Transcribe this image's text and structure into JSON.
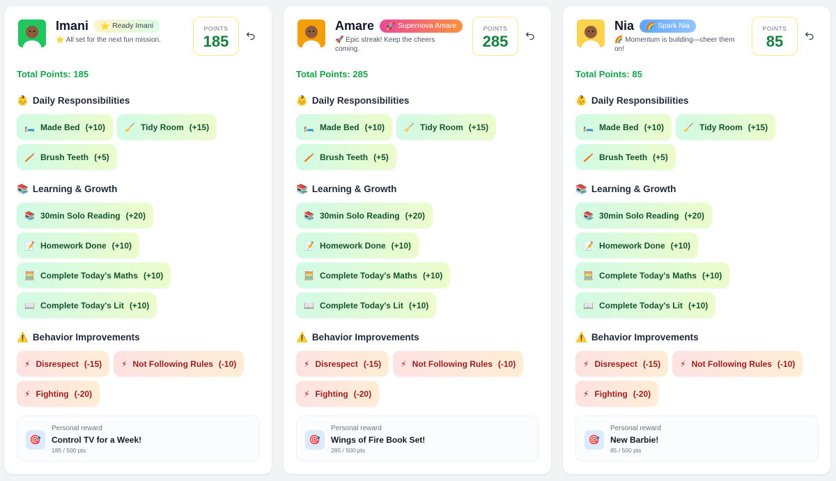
{
  "kids": [
    {
      "name": "Imani",
      "badge_icon": "⭐",
      "badge": "Ready Imani",
      "badge_colors": [
        "#fef3c7",
        "#dcfce7"
      ],
      "badge_text_color": "#374151",
      "avatar_color": "#22c55e",
      "message_icon": "⭐",
      "message": "All set for the next fun mission.",
      "points_label": "POINTS",
      "points": 185,
      "total": "Total Points: 185",
      "sections": [
        {
          "icon": "👶",
          "title": "Daily Responsibilities",
          "button_colors": [
            "#d1fae5",
            "#ecfccb"
          ],
          "text_color": "#14532d",
          "items": [
            {
              "icon": "🛏️",
              "label": "Made Bed",
              "points": "(+10)"
            },
            {
              "icon": "🧹",
              "label": "Tidy Room",
              "points": "(+15)"
            },
            {
              "icon": "🪥",
              "label": "Brush Teeth",
              "points": "(+5)"
            }
          ]
        },
        {
          "icon": "📚",
          "title": "Learning & Growth",
          "button_colors": [
            "#d1fae5",
            "#ecfccb"
          ],
          "text_color": "#14532d",
          "items": [
            {
              "icon": "📚",
              "label": "30min Solo Reading",
              "points": "(+20)"
            },
            {
              "icon": "📝",
              "label": "Homework Done",
              "points": "(+10)"
            },
            {
              "icon": "🧮",
              "label": "Complete Today's Maths",
              "points": "(+10)"
            },
            {
              "icon": "📖",
              "label": "Complete Today's Lit",
              "points": "(+10)"
            }
          ]
        },
        {
          "icon": "⚠️",
          "title": "Behavior Improvements",
          "button_colors": [
            "#fee2e2",
            "#ffedd5"
          ],
          "text_color": "#991b1b",
          "items": [
            {
              "icon": "⚡",
              "label": "Disrespect",
              "points": "(-15)"
            },
            {
              "icon": "⚡",
              "label": "Not Following Rules",
              "points": "(-10)"
            },
            {
              "icon": "⚡",
              "label": "Fighting",
              "points": "(-20)"
            }
          ]
        }
      ],
      "reward": {
        "icon": "🎯",
        "caption": "Personal reward",
        "title": "Control TV for a Week!",
        "progress": "185 / 500 pts"
      }
    },
    {
      "name": "Amare",
      "badge_icon": "🚀",
      "badge": "Supernova Amare",
      "badge_colors": [
        "#ec4899",
        "#fb923c"
      ],
      "badge_text_color": "#ffffff",
      "avatar_color": "#f59e0b",
      "message_icon": "🚀",
      "message": "Epic streak! Keep the cheers coming.",
      "points_label": "POINTS",
      "points": 285,
      "total": "Total Points: 285",
      "sections": [
        {
          "icon": "👶",
          "title": "Daily Responsibilities",
          "button_colors": [
            "#d1fae5",
            "#ecfccb"
          ],
          "text_color": "#14532d",
          "items": [
            {
              "icon": "🛏️",
              "label": "Made Bed",
              "points": "(+10)"
            },
            {
              "icon": "🧹",
              "label": "Tidy Room",
              "points": "(+15)"
            },
            {
              "icon": "🪥",
              "label": "Brush Teeth",
              "points": "(+5)"
            }
          ]
        },
        {
          "icon": "📚",
          "title": "Learning & Growth",
          "button_colors": [
            "#d1fae5",
            "#ecfccb"
          ],
          "text_color": "#14532d",
          "items": [
            {
              "icon": "📚",
              "label": "30min Solo Reading",
              "points": "(+20)"
            },
            {
              "icon": "📝",
              "label": "Homework Done",
              "points": "(+10)"
            },
            {
              "icon": "🧮",
              "label": "Complete Today's Maths",
              "points": "(+10)"
            },
            {
              "icon": "📖",
              "label": "Complete Today's Lit",
              "points": "(+10)"
            }
          ]
        },
        {
          "icon": "⚠️",
          "title": "Behavior Improvements",
          "button_colors": [
            "#fee2e2",
            "#ffedd5"
          ],
          "text_color": "#991b1b",
          "items": [
            {
              "icon": "⚡",
              "label": "Disrespect",
              "points": "(-15)"
            },
            {
              "icon": "⚡",
              "label": "Not Following Rules",
              "points": "(-10)"
            },
            {
              "icon": "⚡",
              "label": "Fighting",
              "points": "(-20)"
            }
          ]
        }
      ],
      "reward": {
        "icon": "🎯",
        "caption": "Personal reward",
        "title": "Wings of Fire Book Set!",
        "progress": "285 / 500 pts"
      }
    },
    {
      "name": "Nia",
      "badge_icon": "🌈",
      "badge": "Spark Nia",
      "badge_colors": [
        "#60a5fa",
        "#93c5fd"
      ],
      "badge_text_color": "#ffffff",
      "avatar_color": "#fcd34d",
      "message_icon": "🌈",
      "message": "Momentum is building—cheer them on!",
      "points_label": "POINTS",
      "points": 85,
      "total": "Total Points: 85",
      "sections": [
        {
          "icon": "👶",
          "title": "Daily Responsibilities",
          "button_colors": [
            "#d1fae5",
            "#ecfccb"
          ],
          "text_color": "#14532d",
          "items": [
            {
              "icon": "🛏️",
              "label": "Made Bed",
              "points": "(+10)"
            },
            {
              "icon": "🧹",
              "label": "Tidy Room",
              "points": "(+15)"
            },
            {
              "icon": "🪥",
              "label": "Brush Teeth",
              "points": "(+5)"
            }
          ]
        },
        {
          "icon": "📚",
          "title": "Learning & Growth",
          "button_colors": [
            "#d1fae5",
            "#ecfccb"
          ],
          "text_color": "#14532d",
          "items": [
            {
              "icon": "📚",
              "label": "30min Solo Reading",
              "points": "(+20)"
            },
            {
              "icon": "📝",
              "label": "Homework Done",
              "points": "(+10)"
            },
            {
              "icon": "🧮",
              "label": "Complete Today's Maths",
              "points": "(+10)"
            },
            {
              "icon": "📖",
              "label": "Complete Today's Lit",
              "points": "(+10)"
            }
          ]
        },
        {
          "icon": "⚠️",
          "title": "Behavior Improvements",
          "button_colors": [
            "#fee2e2",
            "#ffedd5"
          ],
          "text_color": "#991b1b",
          "items": [
            {
              "icon": "⚡",
              "label": "Disrespect",
              "points": "(-15)"
            },
            {
              "icon": "⚡",
              "label": "Not Following Rules",
              "points": "(-10)"
            },
            {
              "icon": "⚡",
              "label": "Fighting",
              "points": "(-20)"
            }
          ]
        }
      ],
      "reward": {
        "icon": "🎯",
        "caption": "Personal reward",
        "title": "New Barbie!",
        "progress": "85 / 500 pts"
      }
    }
  ]
}
